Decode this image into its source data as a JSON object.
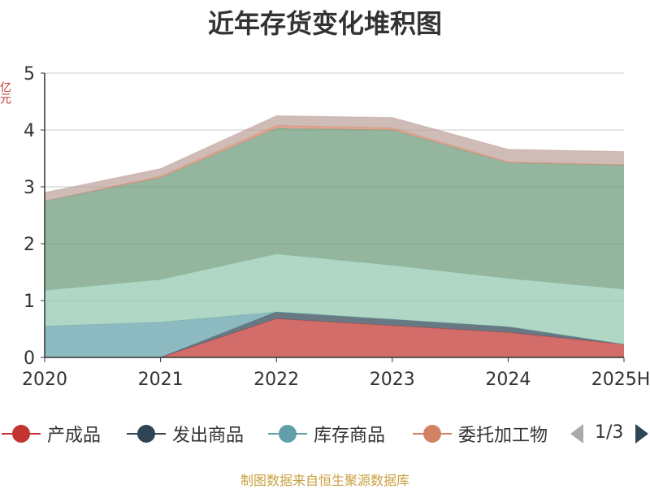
{
  "chart_data": {
    "type": "area",
    "stacked": true,
    "title": "近年存货变化堆积图",
    "ylabel": "",
    "x": [
      "2020",
      "2021",
      "2022",
      "2023",
      "2024",
      "2025H"
    ],
    "ylim": [
      0,
      5
    ],
    "yticks": [
      "0",
      "1",
      "2",
      "3",
      "4",
      "5"
    ],
    "grid": true,
    "series": [
      {
        "name": "产成品",
        "color": "#c23531",
        "values": [
          0,
          0,
          0.68,
          0.56,
          0.44,
          0.23
        ]
      },
      {
        "name": "发出商品",
        "color": "#2f4554",
        "values": [
          0,
          0,
          0.12,
          0.11,
          0.1,
          0.0
        ]
      },
      {
        "name": "库存商品",
        "color": "#61a0a8",
        "values": [
          0.55,
          0.62,
          0.0,
          0.0,
          0.0,
          0.0
        ]
      },
      {
        "name": "",
        "color": "#91c7ae",
        "values": [
          0.63,
          0.75,
          1.02,
          0.95,
          0.85,
          0.97
        ]
      },
      {
        "name": "",
        "color": "#6b9a7a",
        "values": [
          1.57,
          1.79,
          2.21,
          2.38,
          2.03,
          2.18
        ]
      },
      {
        "name": "委托加工物",
        "color": "#d48265",
        "values": [
          0.0,
          0.03,
          0.05,
          0.04,
          0.02,
          0.01
        ]
      },
      {
        "name": "",
        "color": "#bda29a",
        "values": [
          0.15,
          0.13,
          0.17,
          0.18,
          0.22,
          0.23
        ]
      }
    ],
    "legend": {
      "position": "bottom",
      "items": [
        {
          "name": "产成品",
          "color": "#c23531"
        },
        {
          "name": "发出商品",
          "color": "#2f4554"
        },
        {
          "name": "库存商品",
          "color": "#61a0a8"
        },
        {
          "name": "委托加工物",
          "color": "#d48265"
        }
      ],
      "page_indicator": "1/3"
    }
  },
  "source": "制图数据来自恒生聚源数据库",
  "y_unit_label": "亿元"
}
